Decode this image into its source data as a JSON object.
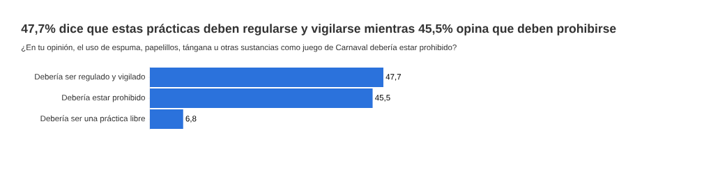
{
  "chart_data": {
    "type": "bar",
    "orientation": "horizontal",
    "title": "47,7% dice que estas prácticas deben regularse y vigilarse mientras 45,5% opina que deben prohibirse",
    "subtitle": "¿En tu opinión, el uso de espuma, papelillos, tángana u otras sustancias como juego de Carnaval debería estar prohibido?",
    "categories": [
      "Debería ser regulado y vigilado",
      "Debería estar prohibido",
      "Debería ser una práctica libre"
    ],
    "values": [
      47.7,
      45.5,
      6.8
    ],
    "value_labels": [
      "47,7",
      "45,5",
      "6,8"
    ],
    "color": "#2b72dc"
  }
}
